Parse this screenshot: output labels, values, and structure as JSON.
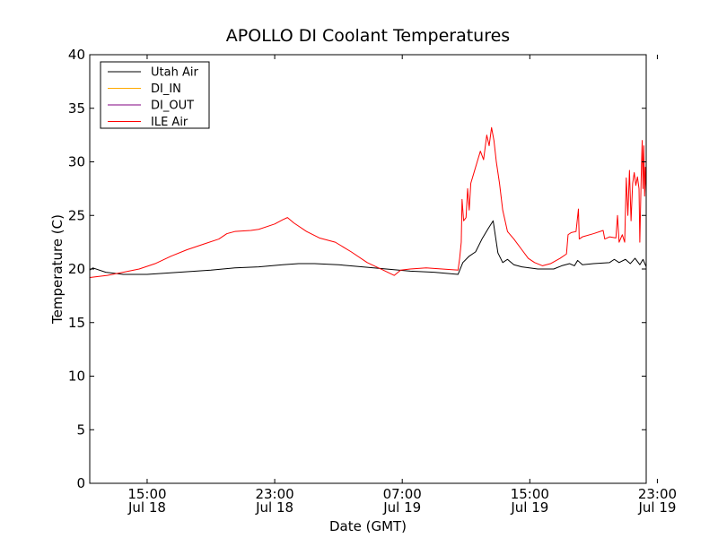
{
  "chart_data": {
    "type": "line",
    "title": "APOLLO DI Coolant Temperatures",
    "xlabel": "Date (GMT)",
    "ylabel": "Temperature (C)",
    "x_unit": "hours since Jul 18 00:00 GMT",
    "xlim": [
      11.4,
      46.3
    ],
    "ylim": [
      0,
      40
    ],
    "y_ticks": [
      0,
      5,
      10,
      15,
      20,
      25,
      30,
      35,
      40
    ],
    "x_ticks": [
      {
        "value": 15,
        "time": "15:00",
        "date": "Jul 18"
      },
      {
        "value": 23,
        "time": "23:00",
        "date": "Jul 18"
      },
      {
        "value": 31,
        "time": "07:00",
        "date": "Jul 19"
      },
      {
        "value": 39,
        "time": "15:00",
        "date": "Jul 19"
      },
      {
        "value": 47,
        "time": "23:00",
        "date": "Jul 19"
      }
    ],
    "legend_position": "top-left",
    "series": [
      {
        "name": "Utah Air",
        "color": "#000000",
        "points": [
          [
            11.4,
            19.9
          ],
          [
            11.6,
            20.1
          ],
          [
            12.4,
            19.7
          ],
          [
            13.5,
            19.5
          ],
          [
            15.0,
            19.5
          ],
          [
            17.0,
            19.7
          ],
          [
            19.0,
            19.9
          ],
          [
            20.5,
            20.1
          ],
          [
            22.0,
            20.2
          ],
          [
            23.5,
            20.4
          ],
          [
            24.5,
            20.5
          ],
          [
            25.5,
            20.5
          ],
          [
            27.0,
            20.4
          ],
          [
            28.5,
            20.2
          ],
          [
            30.0,
            20.0
          ],
          [
            31.5,
            19.8
          ],
          [
            33.0,
            19.7
          ],
          [
            34.5,
            19.5
          ],
          [
            34.8,
            20.6
          ],
          [
            35.2,
            21.2
          ],
          [
            35.6,
            21.6
          ],
          [
            36.0,
            22.8
          ],
          [
            36.4,
            23.8
          ],
          [
            36.7,
            24.5
          ],
          [
            36.85,
            23.0
          ],
          [
            37.0,
            21.5
          ],
          [
            37.3,
            20.6
          ],
          [
            37.6,
            20.9
          ],
          [
            38.0,
            20.4
          ],
          [
            38.5,
            20.2
          ],
          [
            39.5,
            20.0
          ],
          [
            40.5,
            20.0
          ],
          [
            41.0,
            20.3
          ],
          [
            41.5,
            20.5
          ],
          [
            41.8,
            20.3
          ],
          [
            42.0,
            20.8
          ],
          [
            42.3,
            20.4
          ],
          [
            43.0,
            20.5
          ],
          [
            44.0,
            20.6
          ],
          [
            44.3,
            20.9
          ],
          [
            44.6,
            20.6
          ],
          [
            45.0,
            20.9
          ],
          [
            45.3,
            20.5
          ],
          [
            45.6,
            21.0
          ],
          [
            45.9,
            20.4
          ],
          [
            46.1,
            20.9
          ],
          [
            46.3,
            20.2
          ]
        ]
      },
      {
        "name": "DI_IN",
        "color": "#ffaa00",
        "points": []
      },
      {
        "name": "DI_OUT",
        "color": "#800080",
        "points": []
      },
      {
        "name": "ILE Air",
        "color": "#ff0000",
        "points": [
          [
            11.4,
            19.2
          ],
          [
            12.5,
            19.4
          ],
          [
            13.5,
            19.7
          ],
          [
            14.5,
            20.0
          ],
          [
            15.5,
            20.5
          ],
          [
            16.5,
            21.2
          ],
          [
            17.5,
            21.8
          ],
          [
            18.5,
            22.3
          ],
          [
            19.5,
            22.8
          ],
          [
            20.0,
            23.3
          ],
          [
            20.5,
            23.5
          ],
          [
            21.5,
            23.6
          ],
          [
            22.0,
            23.7
          ],
          [
            23.0,
            24.2
          ],
          [
            23.5,
            24.6
          ],
          [
            23.8,
            24.8
          ],
          [
            24.2,
            24.3
          ],
          [
            25.0,
            23.5
          ],
          [
            25.8,
            22.9
          ],
          [
            26.8,
            22.5
          ],
          [
            27.8,
            21.6
          ],
          [
            28.8,
            20.6
          ],
          [
            29.8,
            19.9
          ],
          [
            30.5,
            19.4
          ],
          [
            30.9,
            19.9
          ],
          [
            31.5,
            20.0
          ],
          [
            32.5,
            20.1
          ],
          [
            33.5,
            20.0
          ],
          [
            34.5,
            19.9
          ],
          [
            34.6,
            21.0
          ],
          [
            34.7,
            22.5
          ],
          [
            34.75,
            26.5
          ],
          [
            34.85,
            24.5
          ],
          [
            35.0,
            24.8
          ],
          [
            35.1,
            27.5
          ],
          [
            35.2,
            25.5
          ],
          [
            35.3,
            28.0
          ],
          [
            35.5,
            29.0
          ],
          [
            35.7,
            30.0
          ],
          [
            35.9,
            31.0
          ],
          [
            36.1,
            30.2
          ],
          [
            36.3,
            32.5
          ],
          [
            36.45,
            31.5
          ],
          [
            36.6,
            33.2
          ],
          [
            36.75,
            32.0
          ],
          [
            36.9,
            30.0
          ],
          [
            37.1,
            28.0
          ],
          [
            37.3,
            25.5
          ],
          [
            37.6,
            23.5
          ],
          [
            38.0,
            22.8
          ],
          [
            38.5,
            21.8
          ],
          [
            38.9,
            21.0
          ],
          [
            39.3,
            20.6
          ],
          [
            39.8,
            20.3
          ],
          [
            40.3,
            20.5
          ],
          [
            40.9,
            21.0
          ],
          [
            41.3,
            21.4
          ],
          [
            41.4,
            23.2
          ],
          [
            41.6,
            23.4
          ],
          [
            41.9,
            23.5
          ],
          [
            42.05,
            25.6
          ],
          [
            42.1,
            22.8
          ],
          [
            42.3,
            23.0
          ],
          [
            43.0,
            23.3
          ],
          [
            43.6,
            23.6
          ],
          [
            43.7,
            22.8
          ],
          [
            44.0,
            23.0
          ],
          [
            44.4,
            22.9
          ],
          [
            44.5,
            25.0
          ],
          [
            44.6,
            22.5
          ],
          [
            44.8,
            23.2
          ],
          [
            44.95,
            22.5
          ],
          [
            45.05,
            28.5
          ],
          [
            45.15,
            25.0
          ],
          [
            45.25,
            29.2
          ],
          [
            45.35,
            24.5
          ],
          [
            45.45,
            28.0
          ],
          [
            45.55,
            29.0
          ],
          [
            45.65,
            27.8
          ],
          [
            45.75,
            28.6
          ],
          [
            45.85,
            27.5
          ],
          [
            45.9,
            22.5
          ],
          [
            46.0,
            29.5
          ],
          [
            46.05,
            32.0
          ],
          [
            46.1,
            27.5
          ],
          [
            46.15,
            31.5
          ],
          [
            46.2,
            26.8
          ],
          [
            46.25,
            29.5
          ],
          [
            46.3,
            27.0
          ]
        ]
      }
    ]
  }
}
